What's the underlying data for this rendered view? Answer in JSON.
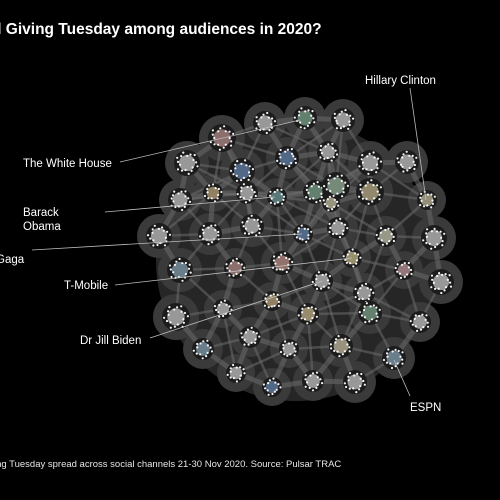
{
  "title": "d Giving Tuesday among audiences in 2020?",
  "footer": "ing Tuesday spread across social channels 21-30 Nov 2020. Source: Pulsar TRAC",
  "colors": {
    "background": "#000000",
    "blob": "#2a2a2a",
    "edge": "#6b6b6b",
    "leader_line": "#bdbdbd"
  },
  "labels": {
    "hillary": "Hillary Clinton",
    "white_house": "The White House",
    "barack_line1": "Barack",
    "barack_line2": "Obama",
    "gaga": "Gaga",
    "tmobile": "T-Mobile",
    "jill": "Dr Jill Biden",
    "espn": "ESPN"
  }
}
